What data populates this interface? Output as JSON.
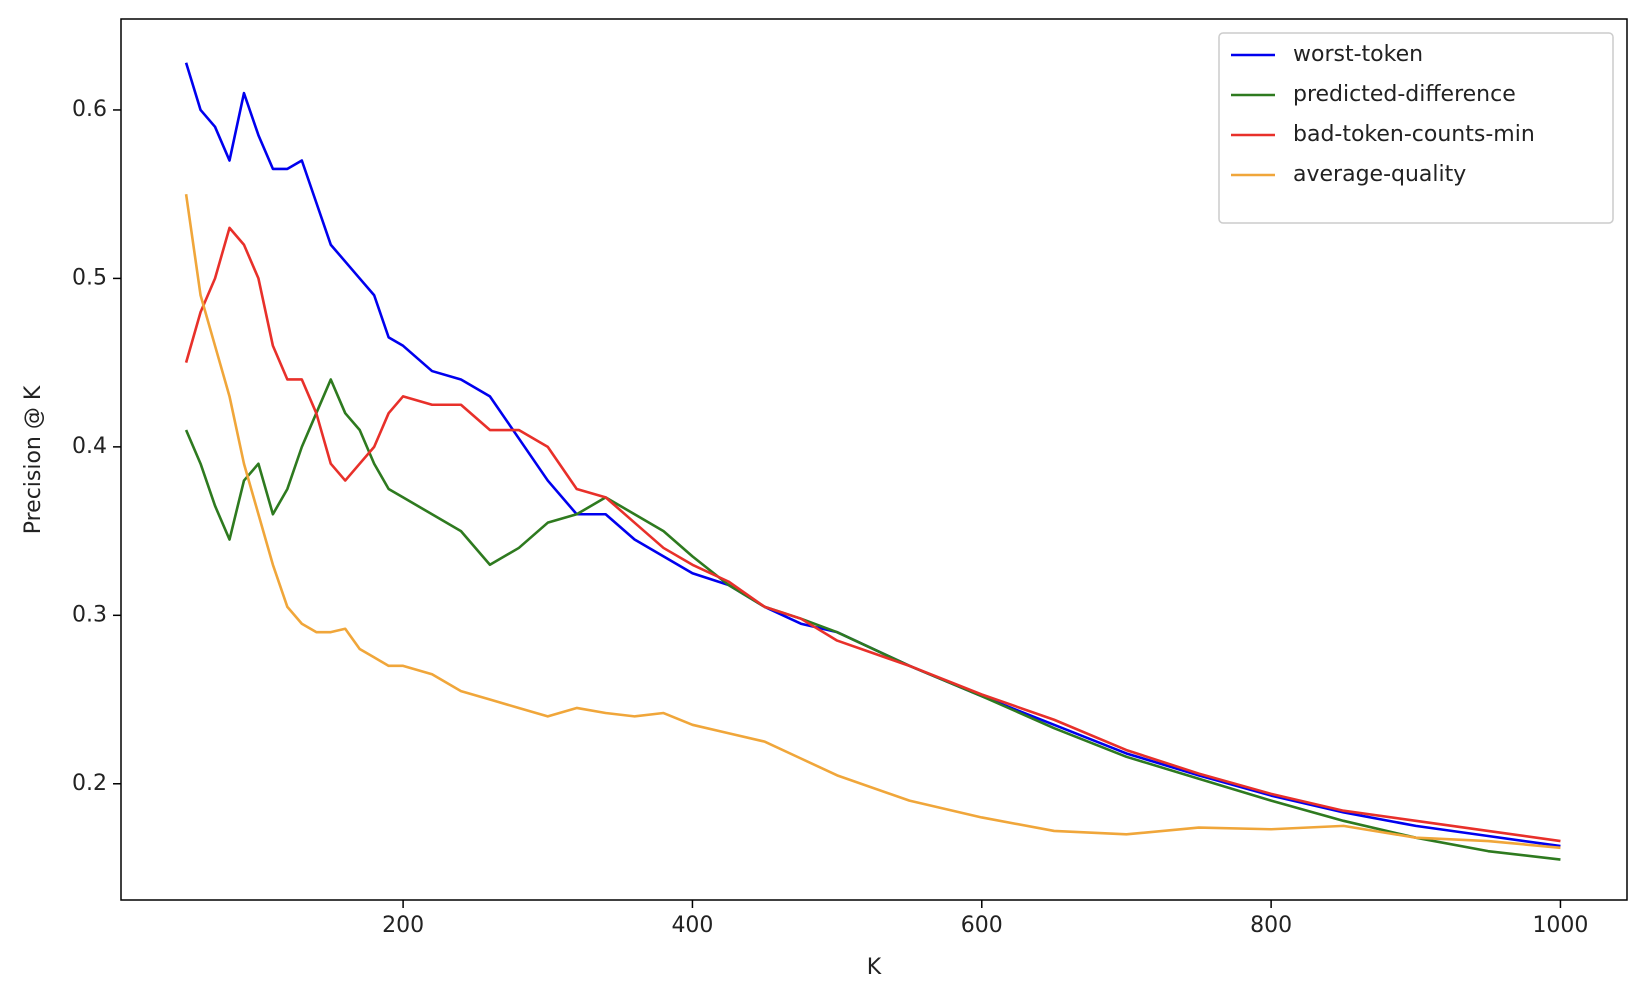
{
  "chart_data": {
    "type": "line",
    "x_label": "K",
    "y_label": "Precision @ K",
    "x": [
      50,
      60,
      70,
      80,
      90,
      100,
      110,
      120,
      130,
      140,
      150,
      160,
      170,
      180,
      190,
      200,
      220,
      240,
      260,
      280,
      300,
      320,
      340,
      360,
      380,
      400,
      425,
      450,
      475,
      500,
      550,
      600,
      650,
      700,
      750,
      800,
      850,
      900,
      950,
      1000
    ],
    "series": [
      {
        "name": "worst-token",
        "color": "#0000ee",
        "values": [
          0.628,
          0.6,
          0.59,
          0.57,
          0.61,
          0.585,
          0.565,
          0.565,
          0.57,
          0.545,
          0.52,
          0.51,
          0.5,
          0.49,
          0.465,
          0.46,
          0.445,
          0.44,
          0.43,
          0.405,
          0.38,
          0.36,
          0.36,
          0.345,
          0.335,
          0.325,
          0.318,
          0.305,
          0.295,
          0.29,
          0.27,
          0.252,
          0.235,
          0.218,
          0.205,
          0.193,
          0.183,
          0.175,
          0.169,
          0.163
        ]
      },
      {
        "name": "predicted-difference",
        "color": "#2e7a1f",
        "values": [
          0.41,
          0.39,
          0.365,
          0.345,
          0.38,
          0.39,
          0.36,
          0.375,
          0.4,
          0.42,
          0.44,
          0.42,
          0.41,
          0.39,
          0.375,
          0.37,
          0.36,
          0.35,
          0.33,
          0.34,
          0.355,
          0.36,
          0.37,
          0.36,
          0.35,
          0.335,
          0.318,
          0.305,
          0.298,
          0.29,
          0.27,
          0.252,
          0.233,
          0.216,
          0.203,
          0.19,
          0.178,
          0.168,
          0.16,
          0.155
        ]
      },
      {
        "name": "bad-token-counts-min",
        "color": "#e8302a",
        "values": [
          0.45,
          0.48,
          0.5,
          0.53,
          0.52,
          0.5,
          0.46,
          0.44,
          0.44,
          0.42,
          0.39,
          0.38,
          0.39,
          0.4,
          0.42,
          0.43,
          0.425,
          0.425,
          0.41,
          0.41,
          0.4,
          0.375,
          0.37,
          0.355,
          0.34,
          0.33,
          0.32,
          0.305,
          0.298,
          0.285,
          0.27,
          0.253,
          0.238,
          0.22,
          0.206,
          0.194,
          0.184,
          0.178,
          0.172,
          0.166
        ]
      },
      {
        "name": "average-quality",
        "color": "#f0a63a",
        "values": [
          0.55,
          0.49,
          0.46,
          0.43,
          0.39,
          0.36,
          0.33,
          0.305,
          0.295,
          0.29,
          0.29,
          0.292,
          0.28,
          0.275,
          0.27,
          0.27,
          0.265,
          0.255,
          0.25,
          0.245,
          0.24,
          0.245,
          0.242,
          0.24,
          0.242,
          0.235,
          0.23,
          0.225,
          0.215,
          0.205,
          0.19,
          0.18,
          0.172,
          0.17,
          0.174,
          0.173,
          0.175,
          0.168,
          0.166,
          0.162
        ]
      }
    ],
    "xlim": [
      5,
      1046
    ],
    "ylim": [
      0.131,
      0.654
    ],
    "xticks": [
      200,
      400,
      600,
      800,
      1000
    ],
    "yticks": [
      0.2,
      0.3,
      0.4,
      0.5,
      0.6
    ],
    "legend": "upper right"
  }
}
